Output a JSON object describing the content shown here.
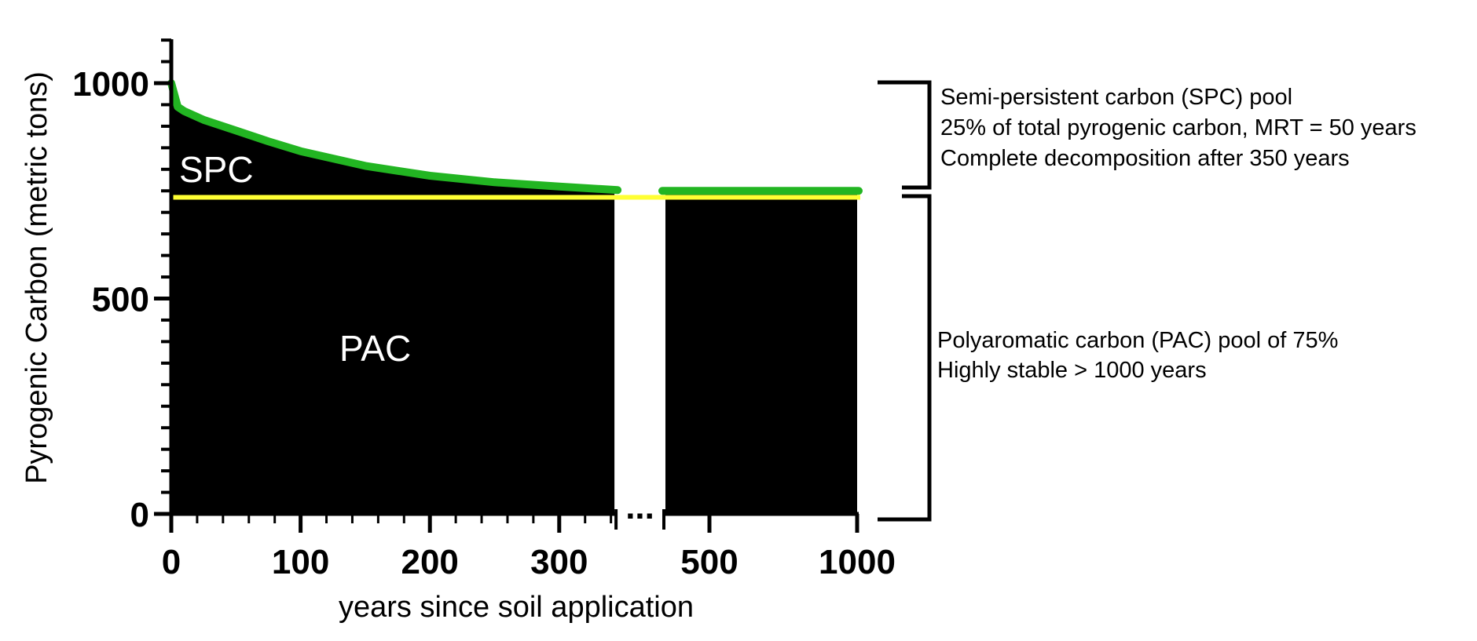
{
  "chart_data": {
    "type": "area",
    "xlabel": "years since soil application",
    "ylabel": "Pyrogenic Carbon (metric tons)",
    "x_tick_labels": [
      "0",
      "100",
      "200",
      "300",
      "500",
      "1000"
    ],
    "y_tick_labels": [
      "0",
      "500",
      "1000"
    ],
    "ylim": [
      0,
      1100
    ],
    "x_axis_break": "...",
    "segments": [
      {
        "xlim": [
          0,
          350
        ]
      },
      {
        "xlim": [
          450,
          1000
        ]
      }
    ],
    "series": [
      {
        "name": "SPC",
        "color": "#22b522",
        "mrt_years": 50,
        "x": [
          0,
          5,
          10,
          25,
          50,
          75,
          100,
          150,
          200,
          250,
          300,
          350,
          450,
          1000
        ],
        "values": [
          1000,
          945,
          935,
          915,
          890,
          865,
          842,
          808,
          785,
          770,
          760,
          752,
          750,
          750
        ]
      },
      {
        "name": "PAC",
        "color": "#ffff33",
        "x": [
          0,
          350,
          450,
          1000
        ],
        "values": [
          735,
          735,
          735,
          735
        ]
      }
    ],
    "region_labels": [
      "SPC",
      "PAC"
    ],
    "annotations": [
      {
        "pool": "SPC",
        "lines": [
          "Semi-persistent carbon (SPC) pool",
          "25% of total pyrogenic carbon, MRT = 50 years",
          "Complete decomposition after 350 years"
        ]
      },
      {
        "pool": "PAC",
        "lines": [
          "Polyaromatic carbon (PAC) pool of 75%",
          "Highly stable  > 1000 years"
        ]
      }
    ]
  }
}
